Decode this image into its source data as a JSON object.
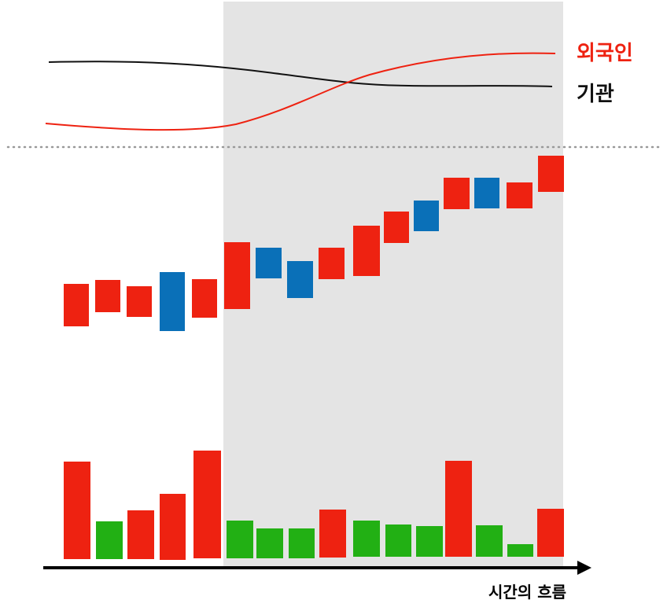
{
  "legend": {
    "foreign": "외국인",
    "institution": "기관"
  },
  "axis": {
    "label": "시간의 흐름"
  }
}
